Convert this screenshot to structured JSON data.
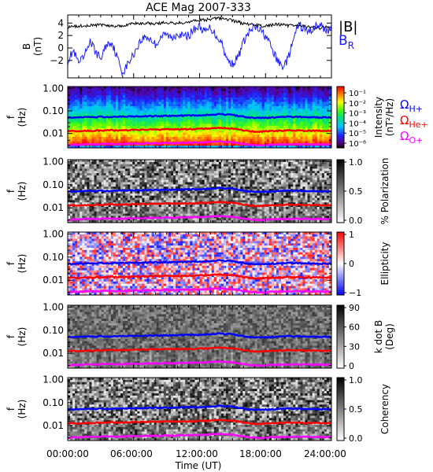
{
  "title": "ACE Mag 2007-333",
  "x_axis": {
    "label": "Time (UT)",
    "ticks": [
      "00:00:00",
      "06:00:00",
      "12:00:00",
      "18:00:00",
      "24:00:00"
    ],
    "range_hours": [
      0,
      24
    ]
  },
  "colors": {
    "B_total": "#000000",
    "B_R": "#1a1aff",
    "omega_H": "#0000ff",
    "omega_He": "#ff0000",
    "omega_O": "#ff00ff"
  },
  "chart_data": [
    {
      "type": "line",
      "panel": "magnetic-field",
      "ylabel": [
        "B",
        "(nT)"
      ],
      "yticks": [
        "4",
        "2",
        "0",
        "−2"
      ],
      "ylim": [
        -4.8,
        5.3
      ],
      "series": [
        {
          "name": "|B|",
          "x": [
            0,
            1,
            2,
            3,
            4,
            5,
            6,
            7,
            8,
            9,
            10,
            11,
            12,
            13,
            14,
            15,
            16,
            17,
            18,
            19,
            20,
            21,
            22,
            23,
            24
          ],
          "values": [
            3.3,
            3.5,
            3.6,
            3.7,
            3.5,
            3.6,
            3.9,
            4.0,
            3.9,
            4.1,
            4.0,
            4.2,
            4.4,
            4.6,
            4.8,
            4.4,
            3.9,
            3.7,
            3.5,
            3.8,
            3.6,
            3.5,
            3.4,
            3.2,
            3.4
          ]
        },
        {
          "name": "B",
          "name_sub": "R",
          "x": [
            0,
            0.5,
            1,
            1.5,
            2,
            2.5,
            3,
            3.5,
            4,
            4.5,
            5,
            5.5,
            6,
            6.5,
            7,
            7.5,
            8,
            8.5,
            9,
            9.5,
            10,
            10.5,
            11,
            11.5,
            12,
            12.5,
            13,
            13.5,
            14,
            14.5,
            15,
            15.5,
            16,
            16.5,
            17,
            17.5,
            18,
            18.5,
            19,
            19.5,
            20,
            20.5,
            21,
            21.5,
            22,
            22.5,
            23,
            23.5,
            24
          ],
          "values": [
            -2.0,
            -0.5,
            -2.5,
            -1.5,
            1.2,
            -0.5,
            -1.8,
            0.5,
            1.0,
            -1.5,
            -4.0,
            -2.5,
            -1.0,
            0.8,
            1.8,
            1.5,
            0.5,
            1.8,
            2.2,
            1.5,
            2.5,
            1.8,
            2.0,
            3.0,
            3.5,
            2.5,
            3.3,
            2.0,
            1.0,
            -2.0,
            -2.5,
            -1.5,
            1.0,
            2.5,
            3.3,
            2.8,
            2.0,
            0.2,
            -1.8,
            -3.0,
            -2.0,
            1.0,
            3.8,
            3.0,
            2.5,
            3.5,
            3.6,
            2.8,
            3.2
          ]
        }
      ]
    },
    {
      "type": "heatmap",
      "panel": "intensity",
      "ylabel": [
        "f",
        "(Hz)"
      ],
      "yticks": [
        "1.00",
        "0.10",
        "0.01"
      ],
      "ylim": [
        0.0023,
        1.2
      ],
      "yscale": "log",
      "colorbar": {
        "label": "Intensity",
        "label2": "(nT²/Hz)",
        "ticks": [
          "10⁻¹",
          "10⁻²",
          "10⁻³",
          "10⁻⁴",
          "10⁻⁵",
          "10⁻⁶"
        ],
        "colormap": "rainbow"
      },
      "legend": [
        {
          "symbol": "Ω",
          "sub": "H+",
          "key": "omega_H"
        },
        {
          "symbol": "Ω",
          "sub": "He+",
          "key": "omega_He"
        },
        {
          "symbol": "Ω",
          "sub": "O+",
          "key": "omega_O"
        }
      ]
    },
    {
      "type": "heatmap",
      "panel": "polarization",
      "ylabel": [
        "f",
        "(Hz)"
      ],
      "yticks": [
        "1.00",
        "0.10",
        "0.01"
      ],
      "yscale": "log",
      "colorbar": {
        "label": "% Polarization",
        "ticks": [
          "1.0",
          "0.5",
          "0.0"
        ],
        "colormap": "gray"
      }
    },
    {
      "type": "heatmap",
      "panel": "ellipticity",
      "ylabel": [
        "f",
        "(Hz)"
      ],
      "yticks": [
        "1.00",
        "0.10",
        "0.01"
      ],
      "yscale": "log",
      "colorbar": {
        "label": "Ellipticity",
        "ticks": [
          "1",
          "0",
          "−1"
        ],
        "colormap": "blue-white-red"
      }
    },
    {
      "type": "heatmap",
      "panel": "k-dot-b",
      "ylabel": [
        "f",
        "(Hz)"
      ],
      "yticks": [
        "1.00",
        "0.10",
        "0.01"
      ],
      "yscale": "log",
      "colorbar": {
        "label": "k dot B",
        "label2": "(Deg)",
        "ticks": [
          "90",
          "60",
          "30",
          "0"
        ],
        "colormap": "gray"
      }
    },
    {
      "type": "heatmap",
      "panel": "coherency",
      "ylabel": [
        "f",
        "(Hz)"
      ],
      "yticks": [
        "1.00",
        "0.10",
        "0.01"
      ],
      "yscale": "log",
      "colorbar": {
        "label": "Coherency",
        "ticks": [
          "1.0",
          "0.5",
          "0.0"
        ],
        "colormap": "gray"
      }
    }
  ],
  "gyrofrequency_hz": {
    "x": [
      0,
      2,
      4,
      6,
      8,
      10,
      12,
      13,
      14,
      15,
      16,
      17,
      18,
      20,
      22,
      24
    ],
    "H+": [
      0.05,
      0.053,
      0.055,
      0.057,
      0.059,
      0.061,
      0.064,
      0.068,
      0.071,
      0.066,
      0.056,
      0.048,
      0.05,
      0.055,
      0.053,
      0.051
    ],
    "He+": [
      0.0125,
      0.0133,
      0.0138,
      0.0143,
      0.0148,
      0.0152,
      0.016,
      0.017,
      0.0178,
      0.0165,
      0.014,
      0.012,
      0.0125,
      0.0138,
      0.0133,
      0.0128
    ],
    "O+": [
      0.0031,
      0.0033,
      0.0034,
      0.0036,
      0.0037,
      0.0038,
      0.004,
      0.0042,
      0.0044,
      0.0041,
      0.0035,
      0.003,
      0.0031,
      0.0034,
      0.0033,
      0.0032
    ]
  }
}
